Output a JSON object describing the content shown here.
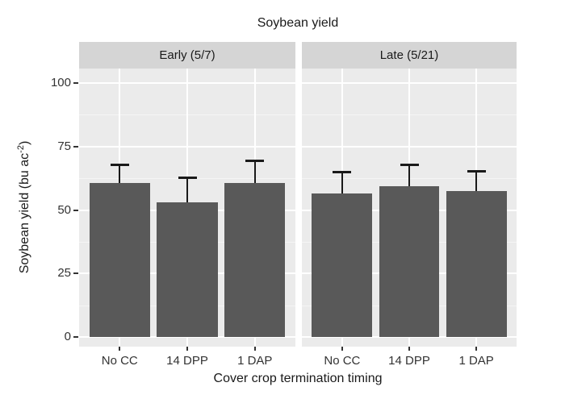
{
  "colors": {
    "background": "#ffffff",
    "bar": "#595959",
    "panel_bg": "#ebebeb",
    "strip_bg": "#d5d5d5",
    "grid_major": "#ffffff",
    "grid_minor": "#f5f5f5",
    "error_bar": "#1a1a1a",
    "text": "#1a1a1a",
    "axis_text": "#333333",
    "tick": "#333333"
  },
  "chart_data": {
    "type": "bar",
    "title": "Soybean yield",
    "xlabel": "Cover crop termination timing",
    "ylabel": "Soybean yield (bu ac⁻²)",
    "ylabel_parts": {
      "prefix": "Soybean yield (bu ac",
      "superscript": "-2",
      "suffix": ")"
    },
    "categories": [
      "No CC",
      "14 DPP",
      "1 DAP"
    ],
    "facets": [
      {
        "label": "Early (5/7)",
        "values": [
          60.5,
          53,
          60.5
        ],
        "error_upper": [
          68,
          63,
          69.5
        ]
      },
      {
        "label": "Late (5/21)",
        "values": [
          56.5,
          59.5,
          57.5
        ],
        "error_upper": [
          65,
          68,
          65.5
        ]
      }
    ],
    "yticks": [
      0,
      25,
      50,
      75,
      100
    ],
    "yticks_minor": [
      12.5,
      37.5,
      62.5,
      87.5
    ],
    "ylim": [
      0,
      105
    ],
    "grid": true,
    "legend": false,
    "facet_layout": "columns"
  }
}
